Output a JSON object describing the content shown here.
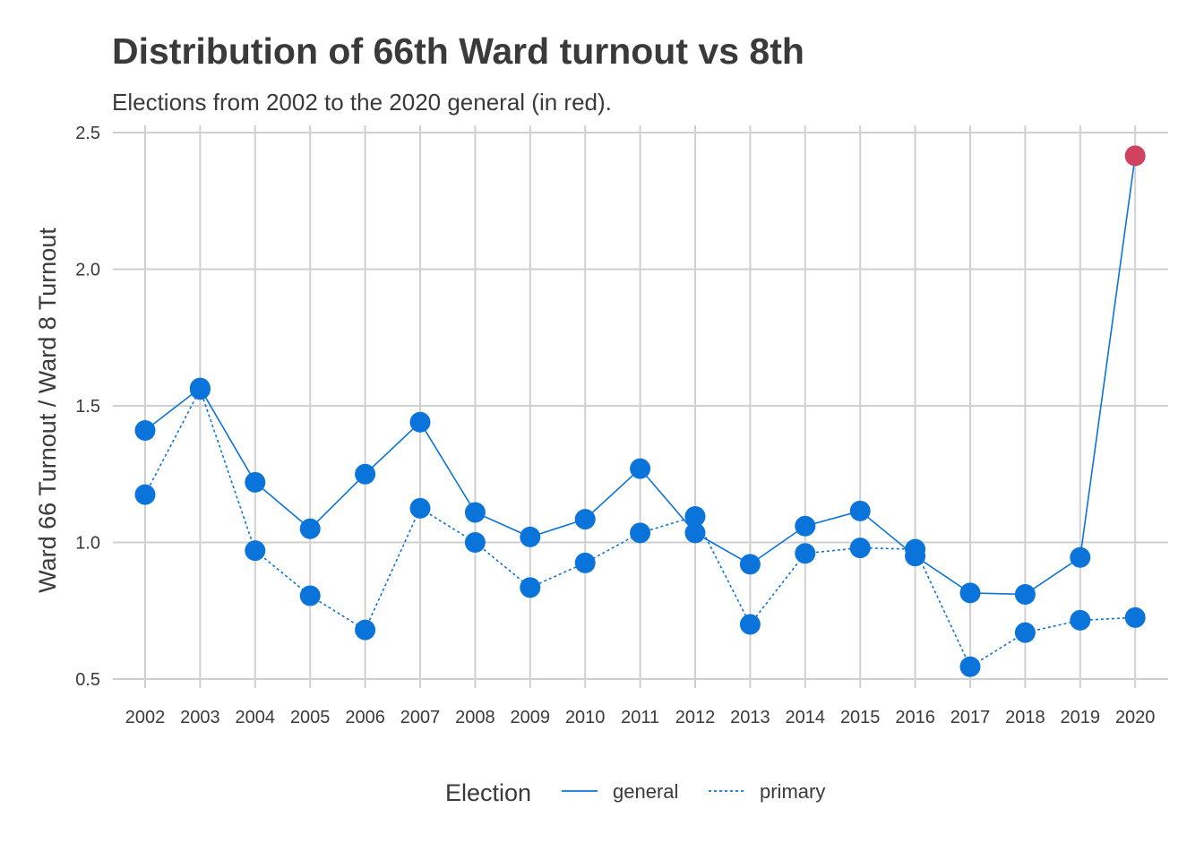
{
  "chart_data": {
    "type": "line",
    "title": "Distribution of 66th Ward turnout vs 8th",
    "subtitle": "Elections from 2002 to the 2020 general (in red).",
    "xlabel": "",
    "ylabel": "Ward 66 Turnout / Ward 8 Turnout",
    "ylim": [
      0.5,
      2.5
    ],
    "yticks": [
      "0.5",
      "1.0",
      "1.5",
      "2.0",
      "2.5"
    ],
    "x": [
      "2002",
      "2003",
      "2004",
      "2005",
      "2006",
      "2007",
      "2008",
      "2009",
      "2010",
      "2011",
      "2012",
      "2013",
      "2014",
      "2015",
      "2016",
      "2017",
      "2018",
      "2019",
      "2020"
    ],
    "grid": true,
    "legend": {
      "title": "Election",
      "position": "bottom"
    },
    "highlight": {
      "series": "general",
      "x": "2020",
      "color": "#d0435f"
    },
    "point_color": "#0a74da",
    "series": [
      {
        "name": "general",
        "linestyle": "solid",
        "values": [
          1.41,
          1.565,
          1.22,
          1.05,
          1.25,
          1.44,
          1.11,
          1.02,
          1.085,
          1.27,
          1.035,
          0.92,
          1.06,
          1.115,
          0.95,
          0.815,
          0.81,
          0.945,
          2.415
        ]
      },
      {
        "name": "primary",
        "linestyle": "dotted",
        "values": [
          1.175,
          1.56,
          0.97,
          0.805,
          0.68,
          1.125,
          1.0,
          0.835,
          0.925,
          1.035,
          1.095,
          0.7,
          0.96,
          0.98,
          0.975,
          0.545,
          0.67,
          0.715,
          0.725
        ]
      }
    ]
  }
}
